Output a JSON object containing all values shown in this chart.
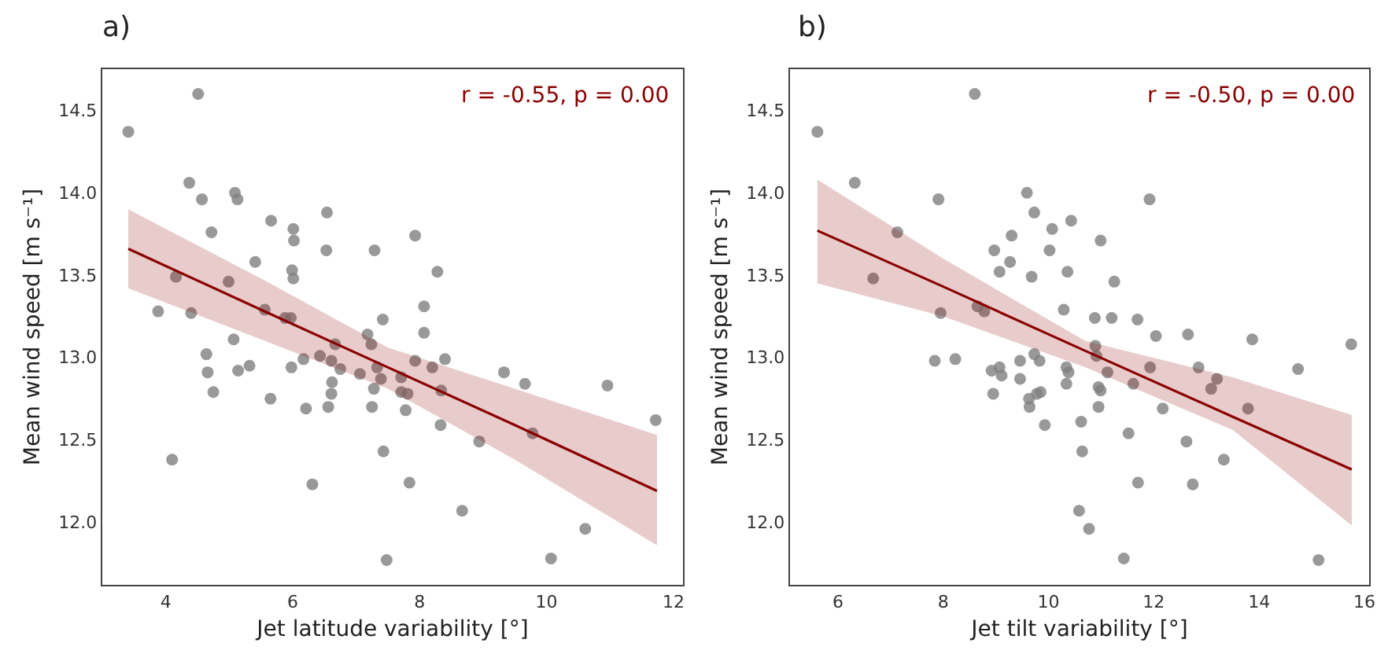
{
  "chart_data": [
    {
      "type": "scatter",
      "title": "a)",
      "xlabel": "Jet latitude variability [°]",
      "ylabel": "Mean wind speed [m s⁻¹]",
      "annotations": [
        "r = -0.55, p = 0.00"
      ],
      "xlim": [
        3.0,
        12.15
      ],
      "ylim": [
        11.62,
        14.75
      ],
      "xticks": [
        4,
        6,
        8,
        10,
        12
      ],
      "yticks": [
        {
          "value": 12,
          "label": "12.0"
        },
        12.5,
        {
          "value": 13,
          "label": "13.0"
        },
        13.5,
        {
          "value": 14,
          "label": "14.0"
        },
        14.5
      ],
      "grid": false,
      "series": [
        {
          "marker": "circle",
          "color": "#808080",
          "x": [
            3.41,
            4.51,
            4.37,
            4.57,
            5.09,
            5.13,
            4.72,
            5.66,
            6.01,
            6.02,
            6.54,
            6.53,
            7.29,
            5.41,
            5.99,
            6.01,
            4.16,
            4.99,
            3.88,
            4.4,
            5.56,
            5.88,
            5.97,
            7.42,
            5.07,
            7.18,
            7.24,
            6.67,
            4.64,
            4.66,
            4.75,
            5.14,
            5.32,
            5.98,
            6.17,
            6.43,
            6.61,
            6.75,
            6.62,
            6.61,
            7.06,
            7.33,
            7.39,
            7.28,
            5.65,
            6.21,
            6.56,
            7.25,
            7.43,
            4.1,
            6.31,
            7.48,
            7.93,
            8.28,
            8.07,
            8.07,
            7.93,
            8.2,
            8.4,
            7.71,
            7.71,
            7.81,
            7.78,
            8.34,
            8.33,
            9.33,
            9.66,
            8.94,
            9.78,
            10.96,
            11.72,
            7.84,
            8.67,
            10.61,
            10.07
          ],
          "values": [
            14.37,
            14.6,
            14.06,
            13.96,
            14.0,
            13.96,
            13.76,
            13.83,
            13.78,
            13.71,
            13.88,
            13.65,
            13.65,
            13.58,
            13.53,
            13.48,
            13.49,
            13.46,
            13.28,
            13.27,
            13.29,
            13.24,
            13.24,
            13.23,
            13.11,
            13.14,
            13.08,
            13.08,
            13.02,
            12.91,
            12.79,
            12.92,
            12.95,
            12.94,
            12.99,
            13.01,
            12.98,
            12.93,
            12.85,
            12.78,
            12.9,
            12.94,
            12.87,
            12.81,
            12.75,
            12.69,
            12.7,
            12.7,
            12.43,
            12.38,
            12.23,
            11.77,
            13.74,
            13.52,
            13.31,
            13.15,
            12.98,
            12.94,
            12.99,
            12.88,
            12.79,
            12.78,
            12.68,
            12.8,
            12.59,
            12.91,
            12.84,
            12.49,
            12.54,
            12.83,
            12.62,
            12.24,
            12.07,
            11.96,
            11.78
          ]
        },
        {
          "type": "line",
          "color": "#8b0000",
          "line_style": "solid",
          "x": [
            3.41,
            5.5,
            7.5,
            9.5,
            11.74
          ],
          "values": [
            13.66,
            13.29,
            12.94,
            12.59,
            12.19
          ],
          "lower": [
            13.42,
            13.11,
            12.81,
            12.38,
            11.86
          ],
          "upper": [
            13.9,
            13.48,
            13.06,
            12.81,
            12.53
          ]
        }
      ]
    },
    {
      "type": "scatter",
      "title": "b)",
      "xlabel": "Jet tilt variability [°]",
      "ylabel": "Mean wind speed [m s⁻¹]",
      "annotations": [
        "r = -0.50, p = 0.00"
      ],
      "xlim": [
        5.09,
        16.09
      ],
      "ylim": [
        11.62,
        14.75
      ],
      "xticks": [
        6,
        8,
        10,
        12,
        14,
        16
      ],
      "yticks": [
        {
          "value": 12,
          "label": "12.0"
        },
        12.5,
        {
          "value": 13,
          "label": "13.0"
        },
        13.5,
        {
          "value": 14,
          "label": "14.0"
        },
        14.5
      ],
      "grid": false,
      "series": [
        {
          "marker": "circle",
          "color": "#808080",
          "x": [
            5.61,
            8.6,
            6.32,
            7.91,
            7.13,
            6.67,
            9.59,
            9.73,
            10.43,
            10.07,
            9.3,
            8.97,
            10.02,
            9.27,
            9.07,
            9.68,
            10.36,
            7.95,
            8.65,
            8.78,
            10.29,
            7.84,
            8.23,
            9.73,
            9.83,
            9.46,
            9.07,
            8.92,
            9.11,
            9.46,
            10.34,
            10.38,
            10.34,
            8.95,
            9.63,
            9.78,
            9.85,
            9.64,
            9.93,
            10.62,
            10.64,
            10.58,
            11.92,
            10.99,
            11.25,
            10.88,
            11.2,
            11.69,
            12.04,
            12.65,
            13.87,
            15.75,
            10.89,
            10.91,
            11.12,
            11.93,
            12.85,
            13.2,
            13.09,
            11.61,
            10.95,
            10.99,
            10.95,
            12.17,
            13.79,
            14.74,
            11.52,
            12.62,
            13.33,
            11.7,
            12.74,
            10.77,
            11.43,
            15.13
          ],
          "values": [
            14.37,
            14.6,
            14.06,
            13.96,
            13.76,
            13.48,
            14.0,
            13.88,
            13.83,
            13.78,
            13.74,
            13.65,
            13.65,
            13.58,
            13.52,
            13.49,
            13.52,
            13.27,
            13.31,
            13.28,
            13.29,
            12.98,
            12.99,
            13.02,
            12.98,
            12.98,
            12.94,
            12.92,
            12.89,
            12.87,
            12.94,
            12.91,
            12.84,
            12.78,
            12.75,
            12.78,
            12.79,
            12.7,
            12.59,
            12.61,
            12.43,
            12.07,
            13.96,
            13.71,
            13.46,
            13.24,
            13.24,
            13.23,
            13.13,
            13.14,
            13.11,
            13.08,
            13.07,
            13.01,
            12.91,
            12.94,
            12.94,
            12.87,
            12.81,
            12.84,
            12.82,
            12.8,
            12.7,
            12.69,
            12.69,
            12.93,
            12.54,
            12.49,
            12.38,
            12.24,
            12.23,
            11.96,
            11.78,
            11.77
          ]
        },
        {
          "type": "line",
          "color": "#8b0000",
          "line_style": "solid",
          "x": [
            5.61,
            8.0,
            10.7,
            13.5,
            15.76
          ],
          "values": [
            13.77,
            13.43,
            13.04,
            12.64,
            12.32
          ],
          "lower": [
            13.45,
            13.25,
            12.94,
            12.56,
            11.98
          ],
          "upper": [
            14.08,
            13.6,
            13.1,
            12.88,
            12.65
          ]
        }
      ]
    }
  ]
}
